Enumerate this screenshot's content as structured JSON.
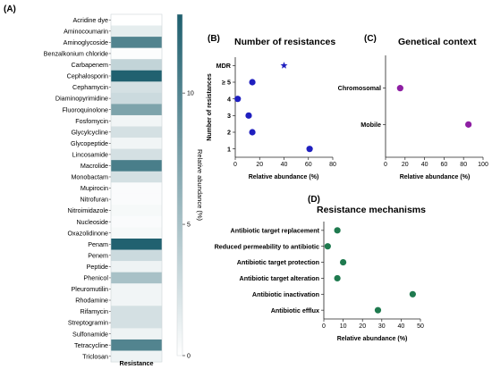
{
  "chart_data": [
    {
      "panel": "(A)",
      "type": "heatmap",
      "xlabel": "Resistance",
      "colorbar_label": "Relative abundance (%)",
      "colorbar_ticks": [
        0,
        5,
        10
      ],
      "colorbar_range": [
        0,
        13
      ],
      "colors": {
        "low": "#ffffff",
        "high": "#1e5f6e"
      },
      "rows": [
        {
          "name": "Acridine dye",
          "value": 0.0
        },
        {
          "name": "Aminocoumarin",
          "value": 1.5
        },
        {
          "name": "Aminoglycoside",
          "value": 10.0
        },
        {
          "name": "Benzalkonium chloride",
          "value": 0.2
        },
        {
          "name": "Carbapenem",
          "value": 3.5
        },
        {
          "name": "Cephalosporin",
          "value": 12.8
        },
        {
          "name": "Cephamycin",
          "value": 2.5
        },
        {
          "name": "Diaminopyrimidine",
          "value": 3.0
        },
        {
          "name": "Fluoroquinolone",
          "value": 7.5
        },
        {
          "name": "Fosfomycin",
          "value": 0.8
        },
        {
          "name": "Glycylcycline",
          "value": 2.5
        },
        {
          "name": "Glycopeptide",
          "value": 0.8
        },
        {
          "name": "Lincosamide",
          "value": 2.5
        },
        {
          "name": "Macrolide",
          "value": 10.5
        },
        {
          "name": "Monobactam",
          "value": 2.5
        },
        {
          "name": "Mupirocin",
          "value": 0.3
        },
        {
          "name": "Nitrofuran",
          "value": 0.3
        },
        {
          "name": "Nitroimidazole",
          "value": 0.5
        },
        {
          "name": "Nucleoside",
          "value": 0.3
        },
        {
          "name": "Oxazolidinone",
          "value": 0.5
        },
        {
          "name": "Penam",
          "value": 12.8
        },
        {
          "name": "Penem",
          "value": 3.0
        },
        {
          "name": "Peptide",
          "value": 1.0
        },
        {
          "name": "Phenicol",
          "value": 5.0
        },
        {
          "name": "Pleuromutilin",
          "value": 0.8
        },
        {
          "name": "Rhodamine",
          "value": 0.8
        },
        {
          "name": "Rifamycin",
          "value": 2.5
        },
        {
          "name": "Streptogramin",
          "value": 2.5
        },
        {
          "name": "Sulfonamide",
          "value": 1.0
        },
        {
          "name": "Tetracycline",
          "value": 10.0
        },
        {
          "name": "Triclosan",
          "value": 1.0
        }
      ]
    },
    {
      "panel": "(B)",
      "type": "scatter",
      "title": "Number of resistances",
      "xlabel": "Relative abundance (%)",
      "ylabel": "Number of resistances",
      "xlim": [
        0,
        80
      ],
      "xticks": [
        0,
        20,
        40,
        60,
        80
      ],
      "categories": [
        "1",
        "2",
        "3",
        "4",
        "≥ 5",
        "MDR"
      ],
      "points": [
        {
          "category": "1",
          "x": 61
        },
        {
          "category": "2",
          "x": 14
        },
        {
          "category": "3",
          "x": 11
        },
        {
          "category": "4",
          "x": 2
        },
        {
          "category": "≥ 5",
          "x": 14
        },
        {
          "category": "MDR",
          "x": 40,
          "marker": "star"
        }
      ],
      "color": "#1f1fbf"
    },
    {
      "panel": "(C)",
      "type": "scatter",
      "title": "Genetical context",
      "xlabel": "Relative abundance (%)",
      "xlim": [
        0,
        100
      ],
      "xticks": [
        0,
        20,
        40,
        60,
        80,
        100
      ],
      "categories": [
        "Mobile",
        "Chromosomal"
      ],
      "points": [
        {
          "category": "Chromosomal",
          "x": 15
        },
        {
          "category": "Mobile",
          "x": 85
        }
      ],
      "color": "#8e1fa3"
    },
    {
      "panel": "(D)",
      "type": "scatter",
      "title": "Resistance mechanisms",
      "xlabel": "Relative abundance (%)",
      "xlim": [
        0,
        50
      ],
      "xticks": [
        0,
        10,
        20,
        30,
        40,
        50
      ],
      "categories": [
        "Antibiotic efflux",
        "Antibiotic inactivation",
        "Antibiotic target alteration",
        "Antibiotic target protection",
        "Reduced permeability to antibiotic",
        "Antibiotic target replacement"
      ],
      "points": [
        {
          "category": "Antibiotic target replacement",
          "x": 7
        },
        {
          "category": "Reduced permeability to antibiotic",
          "x": 2
        },
        {
          "category": "Antibiotic target protection",
          "x": 10
        },
        {
          "category": "Antibiotic target alteration",
          "x": 7
        },
        {
          "category": "Antibiotic inactivation",
          "x": 46
        },
        {
          "category": "Antibiotic efflux",
          "x": 28
        }
      ],
      "color": "#1f7a4f"
    }
  ]
}
